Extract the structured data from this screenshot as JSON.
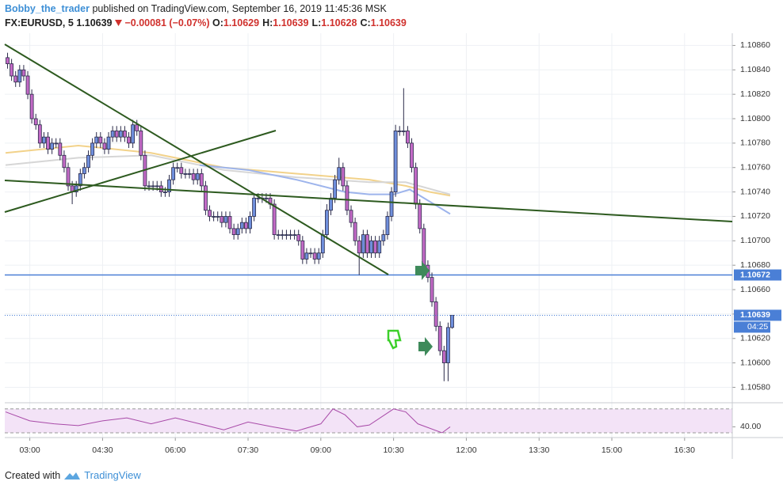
{
  "header": {
    "author": "Bobby_the_trader",
    "published": "published on TradingView.com, September 16, 2019 11:45:36 MSK",
    "symbol": "FX:EURUSD, 5",
    "price": "1.10639",
    "change": "−0.00081 (−0.07%)",
    "ohlc": [
      {
        "label": "O:",
        "value": "1.10629"
      },
      {
        "label": "H:",
        "value": "1.10639"
      },
      {
        "label": "L:",
        "value": "1.10628"
      },
      {
        "label": "C:",
        "value": "1.10639"
      }
    ]
  },
  "footer": {
    "created": "Created with",
    "brand": "TradingView"
  },
  "chart_data": {
    "type": "candlestick",
    "x": [
      "02:30",
      "02:35",
      "02:40",
      "02:45",
      "02:50",
      "02:55",
      "03:00",
      "03:05",
      "03:10",
      "03:15",
      "03:20",
      "03:25",
      "03:30",
      "03:35",
      "03:40",
      "03:45",
      "03:50",
      "03:55",
      "04:00",
      "04:05",
      "04:10",
      "04:15",
      "04:20",
      "04:25",
      "04:30",
      "04:35",
      "04:40",
      "04:45",
      "04:50",
      "04:55",
      "05:00",
      "05:05",
      "05:10",
      "05:15",
      "05:20",
      "05:25",
      "05:30",
      "05:35",
      "05:40",
      "05:45",
      "05:50",
      "05:55",
      "06:00",
      "06:05",
      "06:10",
      "06:15",
      "06:20",
      "06:25",
      "06:30",
      "06:35",
      "06:40",
      "06:45",
      "06:50",
      "06:55",
      "07:00",
      "07:05",
      "07:10",
      "07:15",
      "07:20",
      "07:25",
      "07:30",
      "07:35",
      "07:40",
      "07:45",
      "07:50",
      "07:55",
      "08:00",
      "08:05",
      "08:10",
      "08:15",
      "08:20",
      "08:25",
      "08:30",
      "08:35",
      "08:40",
      "08:45",
      "08:50",
      "08:55",
      "09:00",
      "09:05",
      "09:10",
      "09:15",
      "09:20",
      "09:25",
      "09:30",
      "09:35",
      "09:40",
      "09:45",
      "09:50",
      "09:55",
      "10:00",
      "10:05",
      "10:10",
      "10:15",
      "10:20",
      "10:25",
      "10:30",
      "10:35",
      "10:40",
      "10:45",
      "10:50",
      "10:55",
      "11:00",
      "11:05",
      "11:10",
      "11:15",
      "11:20",
      "11:25",
      "11:30",
      "11:35",
      "11:40"
    ],
    "open": [
      1.1085,
      1.10845,
      1.10835,
      1.1083,
      1.1084,
      1.10835,
      1.1082,
      1.108,
      1.10795,
      1.1078,
      1.10785,
      1.10775,
      1.1078,
      1.1078,
      1.1077,
      1.1076,
      1.10745,
      1.1074,
      1.10745,
      1.10755,
      1.1076,
      1.1077,
      1.1078,
      1.10785,
      1.1078,
      1.10775,
      1.10785,
      1.1079,
      1.10785,
      1.1079,
      1.10785,
      1.1078,
      1.10795,
      1.1079,
      1.1077,
      1.10745,
      1.10745,
      1.10745,
      1.10745,
      1.1074,
      1.1074,
      1.1075,
      1.1076,
      1.1076,
      1.10755,
      1.10755,
      1.10755,
      1.1075,
      1.10755,
      1.10745,
      1.10725,
      1.1072,
      1.1072,
      1.1072,
      1.10715,
      1.1072,
      1.1071,
      1.10705,
      1.1071,
      1.10715,
      1.1071,
      1.1072,
      1.10735,
      1.10735,
      1.10735,
      1.10735,
      1.1073,
      1.10705,
      1.10705,
      1.10705,
      1.10705,
      1.10705,
      1.10705,
      1.107,
      1.10685,
      1.1069,
      1.1069,
      1.10685,
      1.1069,
      1.10705,
      1.10725,
      1.10735,
      1.1075,
      1.1076,
      1.10745,
      1.10725,
      1.10715,
      1.107,
      1.1069,
      1.10705,
      1.1069,
      1.107,
      1.1069,
      1.107,
      1.10705,
      1.1072,
      1.1074,
      1.1079,
      1.1079,
      1.1079,
      1.1078,
      1.1076,
      1.1073,
      1.1071,
      1.1068,
      1.1067,
      1.1065,
      1.1063,
      1.1061,
      1.106,
      1.10629
    ],
    "high": [
      1.10854,
      1.10849,
      1.10839,
      1.10844,
      1.10844,
      1.10839,
      1.10824,
      1.10804,
      1.10799,
      1.10789,
      1.10789,
      1.10784,
      1.10784,
      1.10784,
      1.10774,
      1.10764,
      1.10749,
      1.10749,
      1.10759,
      1.10764,
      1.10774,
      1.10784,
      1.10789,
      1.10789,
      1.10784,
      1.10789,
      1.10794,
      1.10794,
      1.10794,
      1.10794,
      1.10789,
      1.10799,
      1.10799,
      1.10794,
      1.10774,
      1.10749,
      1.10749,
      1.10749,
      1.10749,
      1.10744,
      1.10754,
      1.10764,
      1.10764,
      1.10764,
      1.10759,
      1.10759,
      1.10759,
      1.10759,
      1.10759,
      1.10749,
      1.10729,
      1.10724,
      1.10724,
      1.10724,
      1.10724,
      1.10724,
      1.10714,
      1.10714,
      1.10719,
      1.10719,
      1.10724,
      1.10739,
      1.10739,
      1.10739,
      1.10739,
      1.10739,
      1.10734,
      1.10709,
      1.10709,
      1.10709,
      1.10709,
      1.10709,
      1.10709,
      1.10704,
      1.10694,
      1.10694,
      1.10694,
      1.10694,
      1.10709,
      1.1073,
      1.10739,
      1.10754,
      1.10768,
      1.10764,
      1.10749,
      1.10729,
      1.10719,
      1.10704,
      1.10709,
      1.10709,
      1.10704,
      1.10704,
      1.10704,
      1.10709,
      1.10724,
      1.10744,
      1.10795,
      1.10794,
      1.10825,
      1.10794,
      1.10784,
      1.10764,
      1.10734,
      1.10714,
      1.10684,
      1.10674,
      1.10654,
      1.10634,
      1.10614,
      1.10633,
      1.10639
    ],
    "low": [
      1.10841,
      1.10831,
      1.10826,
      1.10826,
      1.10831,
      1.10816,
      1.10796,
      1.10791,
      1.10776,
      1.10776,
      1.10771,
      1.10771,
      1.10776,
      1.10766,
      1.10756,
      1.10741,
      1.1073,
      1.10736,
      1.10741,
      1.10751,
      1.10756,
      1.10766,
      1.10776,
      1.10776,
      1.10771,
      1.10771,
      1.10781,
      1.10781,
      1.10781,
      1.10781,
      1.10776,
      1.10776,
      1.10786,
      1.10766,
      1.10741,
      1.10741,
      1.10741,
      1.10741,
      1.10736,
      1.10736,
      1.10736,
      1.10746,
      1.10756,
      1.10751,
      1.10751,
      1.10751,
      1.10746,
      1.10746,
      1.10741,
      1.10721,
      1.10716,
      1.10716,
      1.10716,
      1.10711,
      1.10711,
      1.10706,
      1.10701,
      1.10701,
      1.10706,
      1.10706,
      1.10706,
      1.10716,
      1.10731,
      1.10731,
      1.10731,
      1.10726,
      1.10701,
      1.10701,
      1.10701,
      1.10701,
      1.10701,
      1.10701,
      1.10696,
      1.10681,
      1.10681,
      1.10686,
      1.10681,
      1.10681,
      1.10686,
      1.10701,
      1.10721,
      1.10731,
      1.10746,
      1.10741,
      1.10721,
      1.10711,
      1.10696,
      1.10672,
      1.10686,
      1.10686,
      1.10686,
      1.10686,
      1.10686,
      1.10696,
      1.10701,
      1.10716,
      1.10736,
      1.10786,
      1.10786,
      1.10776,
      1.10756,
      1.10726,
      1.10706,
      1.10676,
      1.10666,
      1.10646,
      1.10626,
      1.10606,
      1.10585,
      1.10585,
      1.10628
    ],
    "close": [
      1.10845,
      1.10835,
      1.1083,
      1.1084,
      1.10835,
      1.1082,
      1.108,
      1.10795,
      1.1078,
      1.10785,
      1.10775,
      1.1078,
      1.1078,
      1.1077,
      1.1076,
      1.10745,
      1.1074,
      1.10745,
      1.10755,
      1.1076,
      1.1077,
      1.1078,
      1.10785,
      1.1078,
      1.10775,
      1.10785,
      1.1079,
      1.10785,
      1.1079,
      1.10785,
      1.1078,
      1.10795,
      1.1079,
      1.1077,
      1.10745,
      1.10745,
      1.10745,
      1.10745,
      1.1074,
      1.1074,
      1.1075,
      1.1076,
      1.1076,
      1.10755,
      1.10755,
      1.10755,
      1.1075,
      1.10755,
      1.10745,
      1.10725,
      1.1072,
      1.1072,
      1.1072,
      1.10715,
      1.1072,
      1.1071,
      1.10705,
      1.1071,
      1.10715,
      1.1071,
      1.1072,
      1.10735,
      1.10735,
      1.10735,
      1.10735,
      1.1073,
      1.10705,
      1.10705,
      1.10705,
      1.10705,
      1.10705,
      1.10705,
      1.107,
      1.10685,
      1.1069,
      1.1069,
      1.10685,
      1.1069,
      1.10705,
      1.10725,
      1.10735,
      1.1075,
      1.1076,
      1.10745,
      1.10725,
      1.10715,
      1.107,
      1.1069,
      1.10705,
      1.1069,
      1.107,
      1.1069,
      1.107,
      1.10705,
      1.1072,
      1.1074,
      1.1079,
      1.1079,
      1.1079,
      1.1078,
      1.1076,
      1.1073,
      1.1071,
      1.1068,
      1.1067,
      1.1065,
      1.1063,
      1.1061,
      1.106,
      1.10629,
      1.10639
    ],
    "up_color": "#6f8fdc",
    "down_color": "#c36ac6",
    "border_color": "#2b2b4a",
    "xlim": [
      "02:29",
      "17:29"
    ],
    "xticks": [
      "03:00",
      "04:30",
      "06:00",
      "07:30",
      "09:00",
      "10:30",
      "12:00",
      "13:30",
      "15:00",
      "16:30"
    ],
    "ylim": [
      1.10568,
      1.1087
    ],
    "yticks": [
      {
        "value": 1.1058,
        "label": "1.10580"
      },
      {
        "value": 1.106,
        "label": "1.10600"
      },
      {
        "value": 1.1062,
        "label": "1.10620"
      },
      {
        "value": 1.1064,
        "label": "1.10640"
      },
      {
        "value": 1.1066,
        "label": "1.10660"
      },
      {
        "value": 1.1068,
        "label": "1.10680"
      },
      {
        "value": 1.107,
        "label": "1.10700"
      },
      {
        "value": 1.1072,
        "label": "1.10720"
      },
      {
        "value": 1.1074,
        "label": "1.10740"
      },
      {
        "value": 1.1076,
        "label": "1.10760"
      },
      {
        "value": 1.1078,
        "label": "1.10780"
      },
      {
        "value": 1.108,
        "label": "1.10800"
      },
      {
        "value": 1.1082,
        "label": "1.10820"
      },
      {
        "value": 1.1084,
        "label": "1.10840"
      },
      {
        "value": 1.1086,
        "label": "1.10860"
      }
    ],
    "grid": true,
    "mas": [
      {
        "color": "#f2d28a",
        "x": [
          "02:30",
          "04:00",
          "05:30",
          "07:00",
          "08:30",
          "10:00",
          "10:45",
          "11:15",
          "11:40"
        ],
        "values": [
          1.10772,
          1.10778,
          1.10772,
          1.1076,
          1.10755,
          1.1075,
          1.10745,
          1.1074,
          1.10737
        ]
      },
      {
        "color": "#d6d6d6",
        "x": [
          "02:30",
          "04:00",
          "05:30",
          "07:00",
          "08:30",
          "10:00",
          "10:45",
          "11:40"
        ],
        "values": [
          1.10762,
          1.10768,
          1.1077,
          1.10758,
          1.10752,
          1.10748,
          1.10748,
          1.10738
        ]
      },
      {
        "color": "#9db4ec",
        "x": [
          "06:30",
          "07:30",
          "08:30",
          "09:30",
          "10:00",
          "10:30",
          "10:50",
          "11:40"
        ],
        "values": [
          1.10762,
          1.10758,
          1.1075,
          1.1074,
          1.10738,
          1.10738,
          1.10742,
          1.10722
        ]
      }
    ],
    "price_lines": [
      {
        "value": 1.10672,
        "color": "#4a7fd6"
      }
    ],
    "last_price": 1.10639,
    "countdown": "04:25",
    "rsi": {
      "color": "#a84aa8",
      "band": [
        30,
        70
      ],
      "band_color": "#f3e3f7",
      "ylim": [
        22,
        79
      ],
      "yticks": [
        {
          "value": 40,
          "label": "40.00"
        }
      ],
      "x": [
        "02:30",
        "03:00",
        "03:30",
        "04:00",
        "04:30",
        "05:00",
        "05:30",
        "06:00",
        "06:30",
        "07:00",
        "07:30",
        "08:00",
        "08:30",
        "09:00",
        "09:15",
        "09:30",
        "09:45",
        "10:00",
        "10:30",
        "10:45",
        "11:00",
        "11:30",
        "11:40"
      ],
      "values": [
        65,
        50,
        45,
        42,
        50,
        55,
        45,
        55,
        45,
        35,
        48,
        40,
        33,
        45,
        70,
        60,
        40,
        43,
        70,
        65,
        45,
        30,
        40
      ]
    }
  }
}
